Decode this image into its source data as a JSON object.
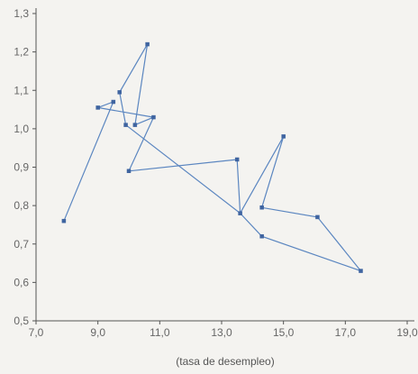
{
  "chart_data": {
    "type": "line",
    "title": "",
    "xlabel": "(tasa de desempleo)",
    "ylabel": "",
    "xlim": [
      7.0,
      19.0
    ],
    "ylim": [
      0.5,
      1.3
    ],
    "xticks": [
      "7,0",
      "9,0",
      "11,0",
      "13,0",
      "15,0",
      "17,0",
      "19,0"
    ],
    "yticks": [
      "0,5",
      "0,6",
      "0,7",
      "0,8",
      "0,9",
      "1,0",
      "1,1",
      "1,2",
      "1,3"
    ],
    "grid": false,
    "legend": "none",
    "line_color": "#5b86c0",
    "marker_color": "#3f64a0",
    "series": [
      {
        "points": [
          {
            "x": 7.9,
            "y": 0.76
          },
          {
            "x": 9.5,
            "y": 1.07
          },
          {
            "x": 9.0,
            "y": 1.055
          },
          {
            "x": 10.8,
            "y": 1.03
          },
          {
            "x": 10.2,
            "y": 1.01
          },
          {
            "x": 10.6,
            "y": 1.22
          },
          {
            "x": 9.7,
            "y": 1.095
          },
          {
            "x": 9.9,
            "y": 1.01
          },
          {
            "x": 13.6,
            "y": 0.78
          },
          {
            "x": 13.5,
            "y": 0.92
          },
          {
            "x": 10.0,
            "y": 0.89
          },
          {
            "x": 10.8,
            "y": 1.03
          }
        ]
      },
      {
        "points": [
          {
            "x": 13.6,
            "y": 0.78
          },
          {
            "x": 15.0,
            "y": 0.98
          },
          {
            "x": 14.3,
            "y": 0.795
          },
          {
            "x": 16.1,
            "y": 0.77
          },
          {
            "x": 17.5,
            "y": 0.63
          },
          {
            "x": 14.3,
            "y": 0.72
          },
          {
            "x": 13.6,
            "y": 0.78
          }
        ]
      }
    ]
  }
}
